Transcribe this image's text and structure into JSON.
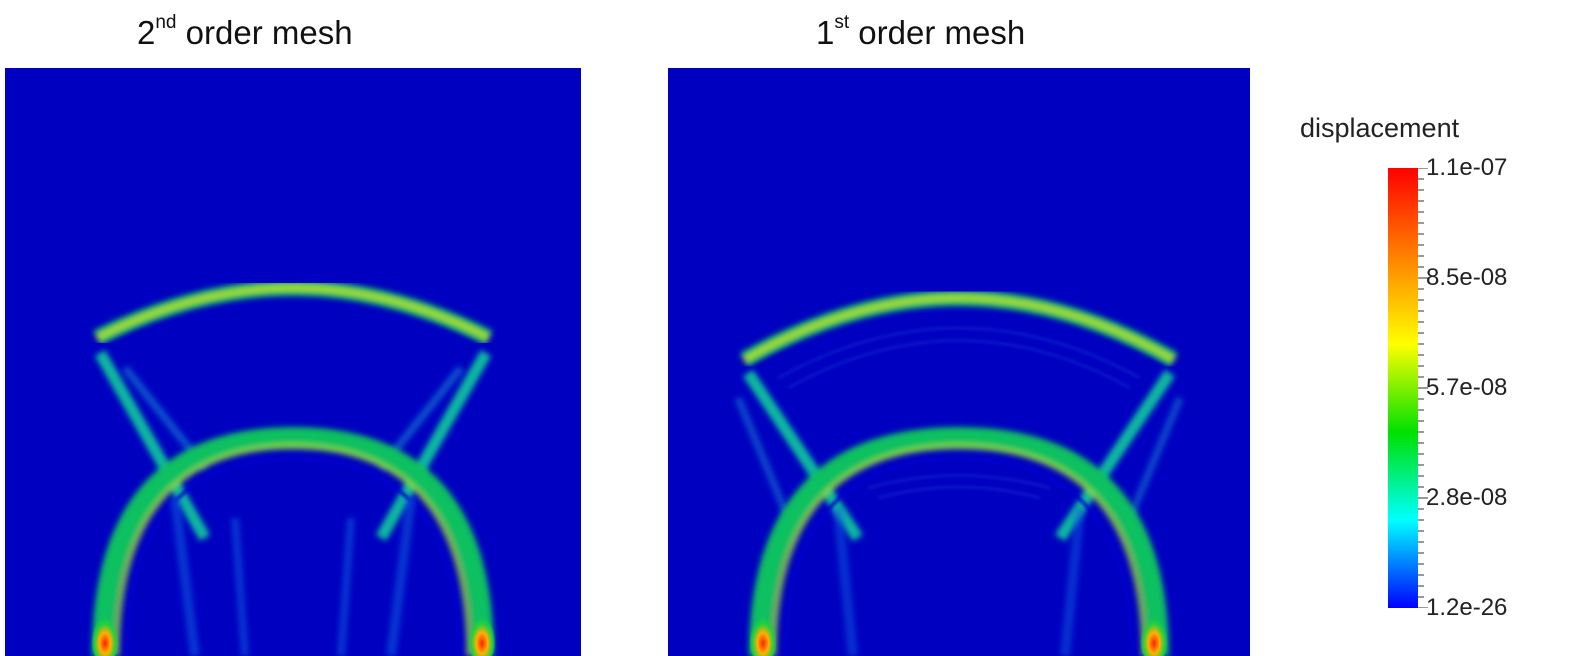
{
  "panels": [
    {
      "title_base": "2",
      "title_sup": "nd",
      "title_rest": " order mesh"
    },
    {
      "title_base": "1",
      "title_sup": "st",
      "title_rest": " order mesh"
    }
  ],
  "colorbar": {
    "title": "displacement",
    "labels": [
      "1.1e-07",
      "8.5e-08",
      "5.7e-08",
      "2.8e-08",
      "1.2e-26"
    ],
    "colors": [
      "#ff0000",
      "#ff8000",
      "#ffff00",
      "#00e000",
      "#00ffff",
      "#0000ff"
    ],
    "background": "#0000c0"
  }
}
